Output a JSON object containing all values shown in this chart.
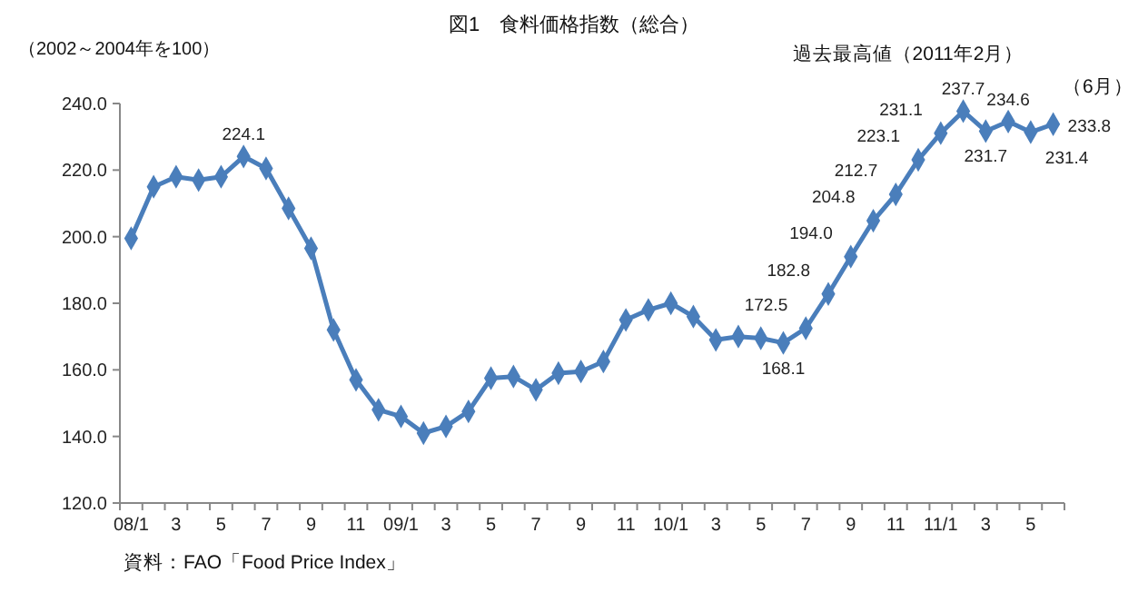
{
  "chart_data": {
    "type": "line",
    "title": "図1　食料価格指数（総合）",
    "ylabel": "（2002～2004年を100）",
    "categories": [
      "08/1",
      null,
      "3",
      null,
      "5",
      null,
      "7",
      null,
      "9",
      null,
      "11",
      null,
      "09/1",
      null,
      "3",
      null,
      "5",
      null,
      "7",
      null,
      "9",
      null,
      "11",
      null,
      "10/1",
      null,
      "3",
      null,
      "5",
      null,
      "7",
      null,
      "9",
      null,
      "11",
      null,
      "11/1",
      null,
      "3",
      null,
      "5",
      null
    ],
    "series": [
      {
        "color": "#4a7ebb",
        "values": [
          199.5,
          215,
          218,
          217,
          218,
          224.1,
          220.5,
          208.5,
          196.5,
          172,
          157,
          148,
          146,
          141,
          143,
          147.5,
          157.5,
          158,
          154,
          159,
          159.5,
          162.5,
          175,
          178,
          180,
          176,
          169,
          170,
          169.5,
          168.1,
          172.5,
          182.8,
          194.0,
          204.8,
          212.7,
          223.1,
          231.1,
          237.7,
          231.7,
          234.6,
          231.4,
          233.8
        ],
        "value_labels": [
          null,
          null,
          null,
          null,
          null,
          "224.1",
          null,
          null,
          null,
          null,
          null,
          null,
          null,
          null,
          null,
          null,
          null,
          null,
          null,
          null,
          null,
          null,
          null,
          null,
          null,
          null,
          null,
          null,
          null,
          "168.1",
          "172.5",
          "182.8",
          "194.0",
          "204.8",
          "212.7",
          "223.1",
          "231.1",
          "237.7",
          "231.7",
          "234.6",
          "231.4",
          "233.8"
        ]
      }
    ],
    "ylim": [
      120,
      240
    ],
    "yticks": [
      {
        "value": 120,
        "label": "120.0"
      },
      {
        "value": 140,
        "label": "140.0"
      },
      {
        "value": 160,
        "label": "160.0"
      },
      {
        "value": 180,
        "label": "180.0"
      },
      {
        "value": 200,
        "label": "200.0"
      },
      {
        "value": 220,
        "label": "220.0"
      },
      {
        "value": 240,
        "label": "240.0"
      }
    ],
    "grid": false,
    "marker": "diamond",
    "line_style": "solid",
    "annotations": [
      "過去最高値（2011年2月）",
      "（6月）",
      "資料：FAO「Food Price Index」"
    ]
  }
}
